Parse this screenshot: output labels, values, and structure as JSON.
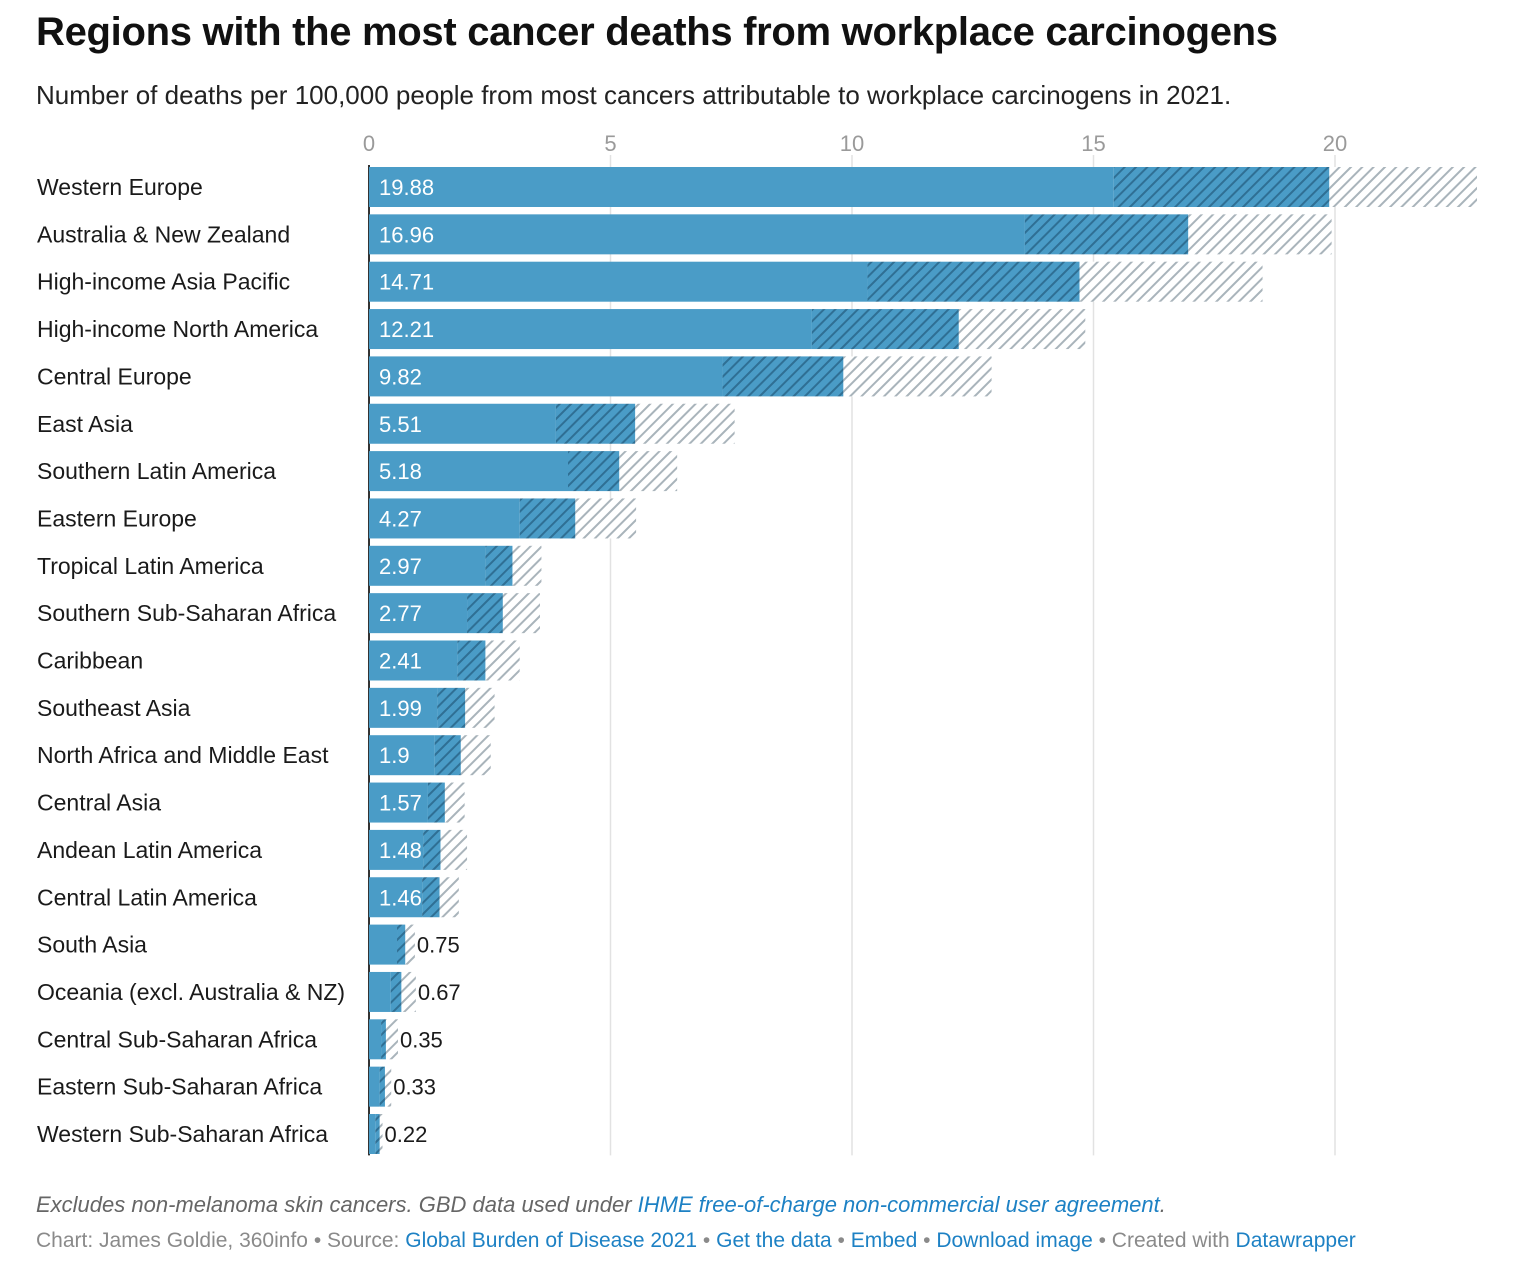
{
  "title": "Regions with the most cancer deaths from workplace carcinogens",
  "subtitle": "Number of deaths per 100,000 people from most cancers attributable to workplace carcinogens in 2021.",
  "footer": {
    "note_prefix": "Excludes non-melanoma skin cancers. GBD data used under ",
    "note_link": "IHME free-of-charge non-commercial user agreement",
    "note_suffix": ".",
    "chart_by": "Chart: James Goldie, 360info",
    "source_prefix": "Source: ",
    "source_link": "Global Burden of Disease 2021",
    "get_data": "Get the data",
    "embed": "Embed",
    "download": "Download image",
    "created_prefix": "Created with ",
    "created_link": "Datawrapper",
    "sep": " • "
  },
  "colors": {
    "bar": "#4a9cc7",
    "uncertainty_inner": "#2f6f94",
    "uncertainty_outer": "#a9b4bb",
    "grid": "#e2e2e2",
    "axis": "#333333"
  },
  "chart_data": {
    "type": "bar",
    "orientation": "horizontal",
    "x_ticks": [
      0,
      5,
      10,
      15,
      20
    ],
    "xlim": [
      0,
      22.5
    ],
    "grid": true,
    "categories": [
      "Western Europe",
      "Australia & New Zealand",
      "High-income Asia Pacific",
      "High-income North America",
      "Central Europe",
      "East Asia",
      "Southern Latin America",
      "Eastern Europe",
      "Tropical Latin America",
      "Southern Sub-Saharan Africa",
      "Caribbean",
      "Southeast Asia",
      "North Africa and Middle East",
      "Central Asia",
      "Andean Latin America",
      "Central Latin America",
      "South Asia",
      "Oceania (excl. Australia & NZ)",
      "Central Sub-Saharan Africa",
      "Eastern Sub-Saharan Africa",
      "Western Sub-Saharan Africa"
    ],
    "values": [
      19.88,
      16.96,
      14.71,
      12.21,
      9.82,
      5.51,
      5.18,
      4.27,
      2.97,
      2.77,
      2.41,
      1.99,
      1.9,
      1.57,
      1.48,
      1.46,
      0.75,
      0.67,
      0.35,
      0.33,
      0.22
    ],
    "lower": [
      15.42,
      13.58,
      10.32,
      9.17,
      7.32,
      3.87,
      4.12,
      3.12,
      2.41,
      2.03,
      1.83,
      1.41,
      1.36,
      1.22,
      1.12,
      1.1,
      0.58,
      0.45,
      0.25,
      0.22,
      0.13
    ],
    "upper": [
      22.94,
      19.93,
      18.5,
      14.83,
      12.89,
      7.57,
      6.38,
      5.53,
      3.57,
      3.54,
      3.12,
      2.6,
      2.52,
      1.98,
      2.03,
      1.86,
      0.95,
      0.97,
      0.6,
      0.46,
      0.28
    ]
  }
}
